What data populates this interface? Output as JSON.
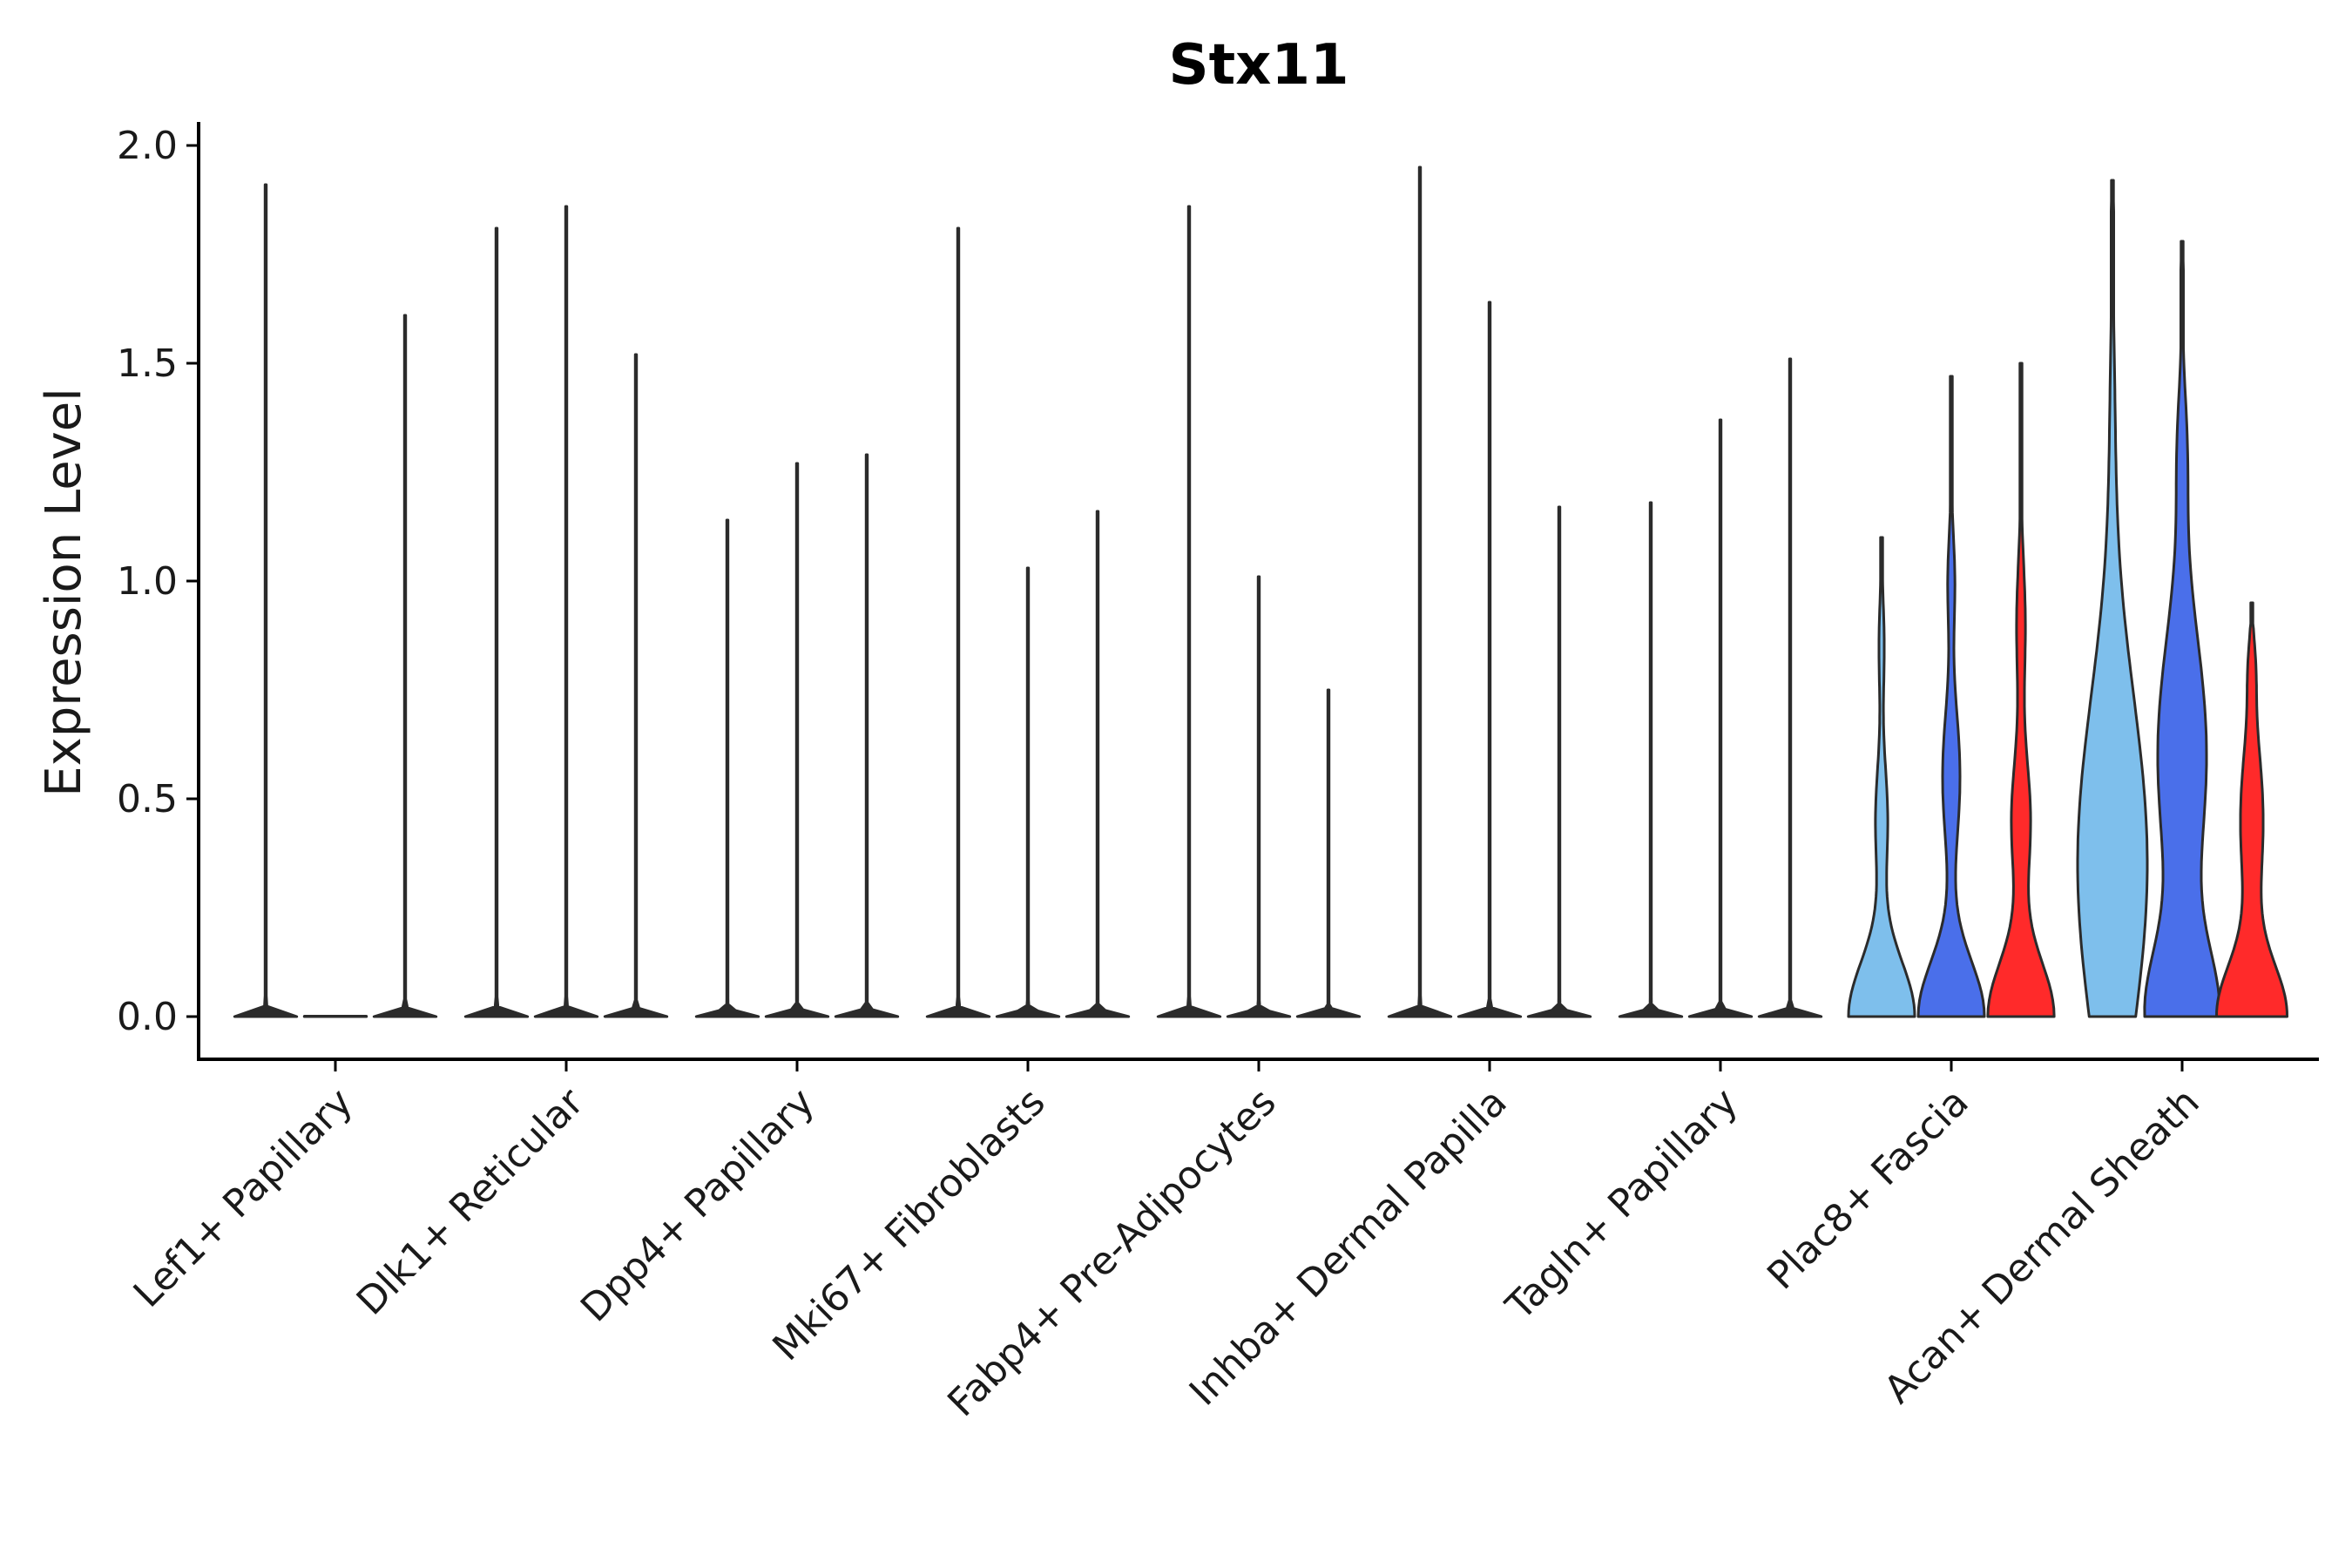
{
  "chart_data": {
    "type": "violin",
    "title": "Stx11",
    "xlabel": "",
    "ylabel": "Expression Level",
    "ylim": [
      -0.1,
      2.05
    ],
    "yticks": [
      0.0,
      0.5,
      1.0,
      1.5,
      2.0
    ],
    "ytick_labels": [
      "0.0",
      "0.5",
      "1.0",
      "1.5",
      "2.0"
    ],
    "categories": [
      "Lef1+ Papillary",
      "Dlk1+ Reticular",
      "Dpp4+ Papillary",
      "Mki67+ Fibroblasts",
      "Fabp4+ Pre-Adipocytes",
      "Inhba+ Dermal Papilla",
      "Tagln+ Papillary",
      "Plac8+ Fascia",
      "Acan+ Dermal Sheath"
    ],
    "series": [
      {
        "name": "Group 1",
        "color": "#7EBFEC",
        "max_values": [
          1.91,
          1.81,
          1.14,
          1.81,
          1.86,
          1.95,
          1.18,
          1.1,
          1.92
        ],
        "shape": "sparse",
        "profile_peak_level": 0.1
      },
      {
        "name": "Group 2",
        "color": "#4A6FEA",
        "max_values": [
          0.0,
          1.86,
          1.27,
          1.03,
          1.01,
          1.64,
          1.37,
          1.47,
          1.78
        ],
        "shape": "sparse",
        "profile_peak_level": 0.1
      },
      {
        "name": "Group 3",
        "color": "#FF2A2A",
        "max_values": [
          1.61,
          1.52,
          1.29,
          1.16,
          0.75,
          1.17,
          1.51,
          1.5,
          0.95
        ],
        "shape": "sparse",
        "profile_peak_level": 0.1
      }
    ]
  }
}
